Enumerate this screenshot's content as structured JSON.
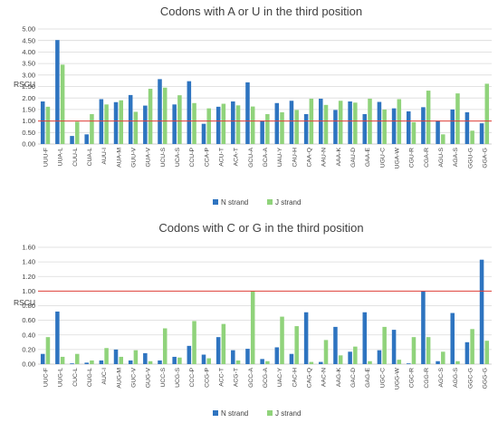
{
  "colors": {
    "n_strand": "#2e74c0",
    "j_strand": "#90d37b",
    "reference": "#e0403a"
  },
  "chart_data": [
    {
      "type": "bar",
      "title": "Codons with A or U in the third position",
      "xlabel": "",
      "ylabel": "RSCU",
      "ylim": [
        0,
        5
      ],
      "yticks": [
        "0.00",
        "0.50",
        "1.00",
        "1.50",
        "2.00",
        "2.50",
        "3.00",
        "3.50",
        "4.00",
        "4.50",
        "5.00"
      ],
      "reference_line": 1.0,
      "grid": true,
      "legend_position": "bottom",
      "categories": [
        "UUU-F",
        "UUA-L",
        "CUU-L",
        "CUA-L",
        "AUU-I",
        "AUA-M",
        "GUU-V",
        "GUA-V",
        "UCU-S",
        "UCA-S",
        "CCU-P",
        "CCA-P",
        "ACU-T",
        "ACA-T",
        "GCU-A",
        "GCA-A",
        "UAU-Y",
        "CAU-H",
        "CAA-Q",
        "AAU-N",
        "AAA-K",
        "GAU-D",
        "GAA-E",
        "UGU-C",
        "UGA-W",
        "CGU-R",
        "CGA-R",
        "AGU-S",
        "AGA-S",
        "GGU-G",
        "GGA-G"
      ],
      "series": [
        {
          "name": "N strand",
          "values": [
            1.85,
            4.52,
            0.35,
            0.42,
            1.95,
            1.82,
            2.13,
            1.67,
            2.82,
            1.72,
            2.73,
            0.88,
            1.62,
            1.85,
            2.68,
            1.02,
            1.78,
            1.88,
            1.3,
            1.97,
            1.48,
            1.85,
            1.3,
            1.83,
            1.55,
            1.42,
            1.6,
            1.02,
            1.5,
            1.38,
            0.9
          ]
        },
        {
          "name": "J strand",
          "values": [
            1.62,
            3.45,
            0.97,
            1.3,
            1.72,
            1.9,
            1.4,
            2.4,
            2.45,
            2.12,
            1.78,
            1.55,
            1.75,
            1.68,
            1.63,
            1.3,
            1.38,
            1.48,
            1.97,
            1.7,
            1.88,
            1.8,
            1.97,
            1.5,
            1.95,
            0.95,
            2.32,
            0.42,
            2.2,
            0.58,
            2.62
          ]
        }
      ]
    },
    {
      "type": "bar",
      "title": "Codons with C or G in the third position",
      "xlabel": "",
      "ylabel": "RSCU",
      "ylim": [
        0,
        1.6
      ],
      "yticks": [
        "0.00",
        "0.20",
        "0.40",
        "0.60",
        "0.80",
        "1.00",
        "1.20",
        "1.40",
        "1.60"
      ],
      "reference_line": 1.0,
      "grid": true,
      "legend_position": "bottom",
      "categories": [
        "UUC-F",
        "UUG-L",
        "CUC-L",
        "CUG-L",
        "AUC-I",
        "AUG-M",
        "GUC-V",
        "GUG-V",
        "UCC-S",
        "UCG-S",
        "CCC-P",
        "CCG-P",
        "ACC-T",
        "ACG-T",
        "GCC-A",
        "GCG-A",
        "UAC-Y",
        "CAC-H",
        "CAG-Q",
        "AAC-N",
        "AAG-K",
        "GAC-D",
        "GAG-E",
        "UGC-C",
        "UGG-W",
        "CGC-R",
        "CGG-R",
        "AGC-S",
        "AGG-S",
        "GGC-G",
        "GGG-G"
      ],
      "series": [
        {
          "name": "N strand",
          "values": [
            0.14,
            0.72,
            0.01,
            0.02,
            0.05,
            0.2,
            0.05,
            0.15,
            0.05,
            0.1,
            0.25,
            0.13,
            0.37,
            0.19,
            0.21,
            0.07,
            0.23,
            0.14,
            0.71,
            0.03,
            0.51,
            0.17,
            0.71,
            0.19,
            0.47,
            0.01,
            1.0,
            0.04,
            0.7,
            0.3,
            1.43
          ]
        },
        {
          "name": "J strand",
          "values": [
            0.37,
            0.1,
            0.14,
            0.05,
            0.22,
            0.1,
            0.19,
            0.04,
            0.49,
            0.09,
            0.59,
            0.08,
            0.55,
            0.05,
            1.0,
            0.04,
            0.65,
            0.52,
            0.03,
            0.33,
            0.12,
            0.24,
            0.04,
            0.51,
            0.06,
            0.37,
            0.37,
            0.17,
            0.04,
            0.48,
            0.32
          ]
        }
      ]
    }
  ]
}
